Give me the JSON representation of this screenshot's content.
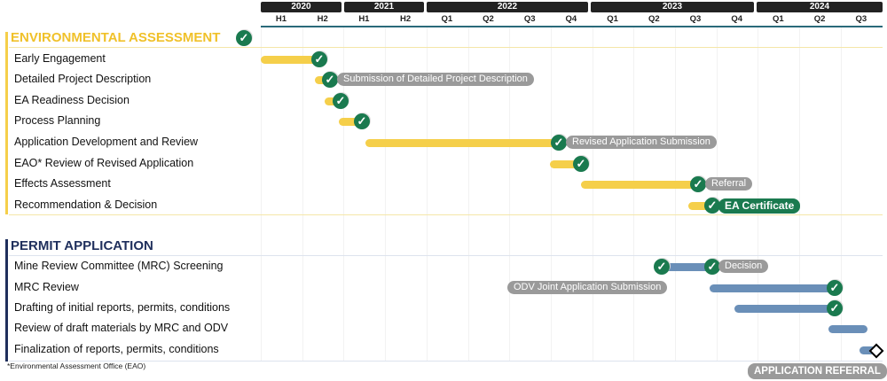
{
  "chart_data": {
    "type": "gantt",
    "timeline": {
      "years": [
        "2020",
        "2021",
        "2022",
        "2023",
        "2024"
      ],
      "periods": [
        "H1",
        "H2",
        "H1",
        "H2",
        "Q1",
        "Q2",
        "Q3",
        "Q4",
        "Q1",
        "Q2",
        "Q3",
        "Q4",
        "Q1",
        "Q2",
        "Q3"
      ]
    },
    "colors": {
      "ea": "#f5cf4a",
      "permit": "#6a8fb8",
      "check": "#1a7a4f",
      "label": "#9a9a9a",
      "ea_heading": "#f0c12a",
      "permit_heading": "#1f2f5c"
    },
    "sections": [
      {
        "title": "ENVIRONMENTAL ASSESSMENT",
        "completed": true,
        "tasks": [
          {
            "name": "Early Engagement",
            "milestone_label": ""
          },
          {
            "name": "Detailed Project Description",
            "milestone_label": "Submission of Detailed Project Description"
          },
          {
            "name": "EA Readiness Decision",
            "milestone_label": ""
          },
          {
            "name": "Process Planning",
            "milestone_label": ""
          },
          {
            "name": "Application Development and Review",
            "milestone_label": "Revised Application Submission"
          },
          {
            "name": "EAO* Review of Revised Application",
            "milestone_label": ""
          },
          {
            "name": "Effects Assessment",
            "milestone_label": "Referral"
          },
          {
            "name": "Recommendation & Decision",
            "milestone_label": "EA Certificate"
          }
        ]
      },
      {
        "title": "PERMIT APPLICATION",
        "tasks": [
          {
            "name": "Mine Review Committee (MRC) Screening",
            "milestone_label": "Decision"
          },
          {
            "name": "MRC Review",
            "milestone_label": "ODV Joint Application Submission"
          },
          {
            "name": "Drafting of initial reports, permits, conditions",
            "milestone_label": ""
          },
          {
            "name": "Review of draft materials by MRC and ODV",
            "milestone_label": ""
          },
          {
            "name": "Finalization of reports, permits, conditions",
            "milestone_label": "APPLICATION REFERRAL"
          }
        ]
      }
    ],
    "footnote": "*Environmental Assessment Office (EAO)"
  }
}
